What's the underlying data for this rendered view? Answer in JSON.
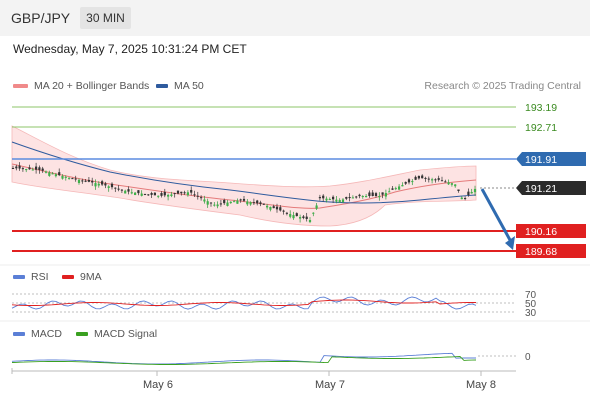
{
  "header": {
    "symbol": "GBP/JPY",
    "interval": "30 MIN"
  },
  "timestamp": "Wednesday, May 7, 2025 10:31:24 PM CET",
  "legend": {
    "ma_bb": {
      "label": "MA 20 + Bollinger Bands",
      "color": "#f08a8a"
    },
    "ma50": {
      "label": "MA 50",
      "color": "#2f5b9e"
    }
  },
  "credit": "Research © 2025 Trading Central",
  "levels": {
    "resistance_1": "193.19",
    "resistance_2": "192.71",
    "pivot": "191.91",
    "last_price": "191.21",
    "support_1": "190.16",
    "support_2": "189.68"
  },
  "rsi_panel": {
    "rsi_label": "RSI",
    "rsi_color": "#5b7fd6",
    "ma_label": "9MA",
    "ma_color": "#e02020",
    "levels": [
      "70",
      "50",
      "30"
    ]
  },
  "macd_panel": {
    "macd_label": "MACD",
    "macd_color": "#5b7fd6",
    "signal_label": "MACD Signal",
    "signal_color": "#3aa020",
    "zero": "0"
  },
  "x_axis": [
    "May 6",
    "May 7",
    "May 8"
  ]
}
